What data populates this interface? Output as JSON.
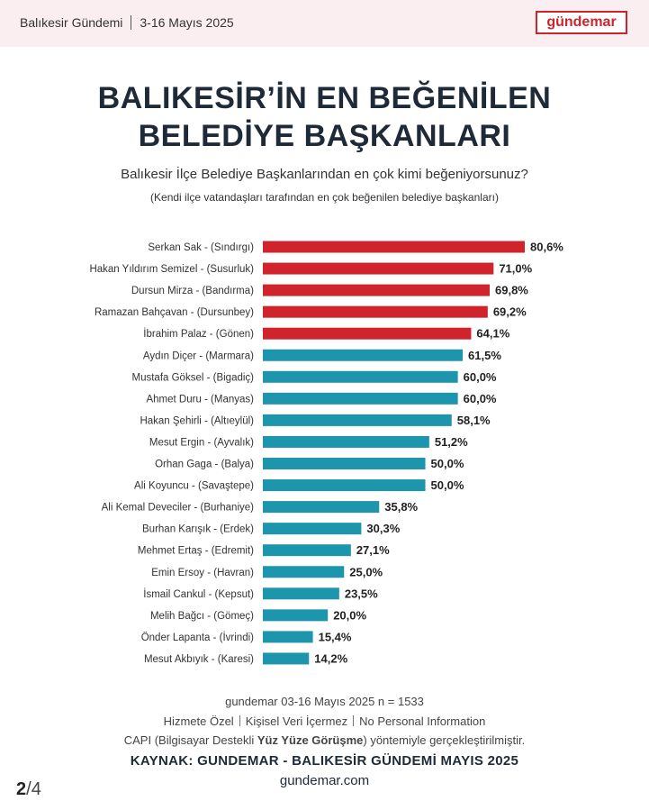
{
  "header": {
    "section": "Balıkesir Gündemi",
    "date_range": "3-16 Mayıs 2025",
    "logo": "gündemar"
  },
  "title_line1": "BALIKESİR’İN EN BEĞENİLEN",
  "title_line2": "BELEDİYE BAŞKANLARI",
  "subtitle": "Balıkesir İlçe Belediye Başkanlarından en çok kimi beğeniyorsunuz?",
  "note": "(Kendi ilçe vatandaşları tarafından en çok beğenilen belediye başkanları)",
  "colors": {
    "top5": "#d0242c",
    "rest": "#1c95ad",
    "accent": "#d0242c"
  },
  "chart_data": {
    "type": "bar",
    "orientation": "horizontal",
    "categories": [
      "Serkan Sak - (Sındırgı)",
      "Hakan Yıldırım Semizel - (Susurluk)",
      "Dursun Mirza - (Bandırma)",
      "Ramazan Bahçavan - (Dursunbey)",
      "İbrahim Palaz - (Gönen)",
      "Aydın Diçer - (Marmara)",
      "Mustafa Göksel - (Bigadiç)",
      "Ahmet Duru - (Manyas)",
      "Hakan Şehirli - (Altıeylül)",
      "Mesut Ergin - (Ayvalık)",
      "Orhan Gaga - (Balya)",
      "Ali Koyuncu - (Savaştepe)",
      "Ali Kemal Deveciler - (Burhaniye)",
      "Burhan Karışık - (Erdek)",
      "Mehmet Ertaş - (Edremit)",
      "Emin Ersoy - (Havran)",
      "İsmail Cankul - (Kepsut)",
      "Melih Bağcı - (Gömeç)",
      "Önder Lapanta - (İvrindi)",
      "Mesut Akbıyık - (Karesi)"
    ],
    "values": [
      80.6,
      71.0,
      69.8,
      69.2,
      64.1,
      61.5,
      60.0,
      60.0,
      58.1,
      51.2,
      50.0,
      50.0,
      35.8,
      30.3,
      27.1,
      25.0,
      23.5,
      20.0,
      15.4,
      14.2
    ],
    "labels": [
      "80,6%",
      "71,0%",
      "69,8%",
      "69,2%",
      "64,1%",
      "61,5%",
      "60,0%",
      "60,0%",
      "58,1%",
      "51,2%",
      "50,0%",
      "50,0%",
      "35,8%",
      "30,3%",
      "27,1%",
      "25,0%",
      "23,5%",
      "20,0%",
      "15,4%",
      "14,2%"
    ],
    "highlight_top": 5,
    "xlim": [
      0,
      80.6
    ]
  },
  "footer": {
    "line1": "gundemar 03-16 Mayıs 2025 n = 1533",
    "line2_parts": [
      "Hizmete Özel",
      "Kişisel Veri İçermez",
      "No Personal Information"
    ],
    "line3_pre": "CAPI (Bilgisayar Destekli ",
    "line3_bold": "Yüz Yüze Görüşme",
    "line3_post": ") yöntemiyle gerçekleştirilmiştir.",
    "source": "KAYNAK: GUNDEMAR - BALIKESİR GÜNDEMİ MAYIS 2025",
    "website": "gundemar.com"
  },
  "pagination": {
    "current": "2",
    "separator": "/",
    "total": "4"
  }
}
